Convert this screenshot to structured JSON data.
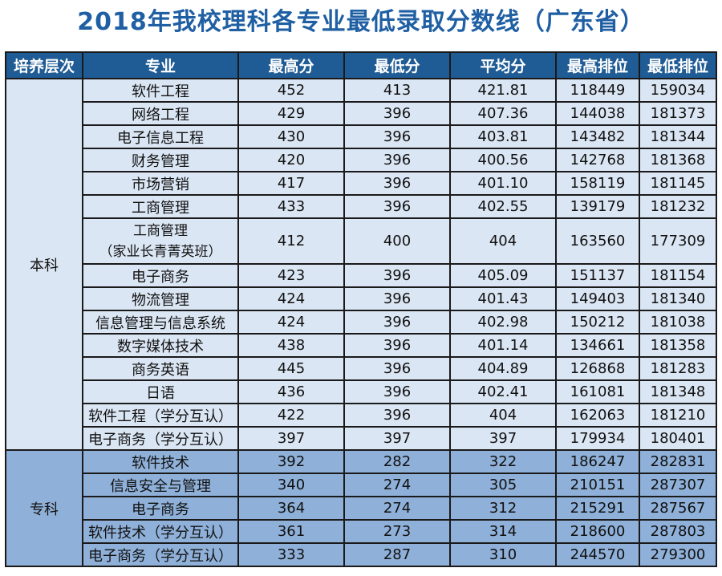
{
  "title": "2018年我校理科各专业最低录取分数线（广东省）",
  "headers": [
    "培养层次",
    "专业",
    "最高分",
    "最低分",
    "平均分",
    "最高排位",
    "最低排位"
  ],
  "colors": {
    "title": "#1f5fa3",
    "header_bg": "#1f5b94",
    "benke_bg": "#dbe6f4",
    "zhuanke_bg": "#8fb0d8"
  },
  "benke": {
    "level": "本科",
    "rows": [
      {
        "major": "软件工程",
        "max": "452",
        "min": "413",
        "avg": "421.81",
        "rank_high": "118449",
        "rank_low": "159034"
      },
      {
        "major": "网络工程",
        "max": "429",
        "min": "396",
        "avg": "407.36",
        "rank_high": "144038",
        "rank_low": "181373"
      },
      {
        "major": "电子信息工程",
        "max": "430",
        "min": "396",
        "avg": "403.81",
        "rank_high": "143482",
        "rank_low": "181344"
      },
      {
        "major": "财务管理",
        "max": "420",
        "min": "396",
        "avg": "400.56",
        "rank_high": "142768",
        "rank_low": "181368"
      },
      {
        "major": "市场营销",
        "max": "417",
        "min": "396",
        "avg": "401.10",
        "rank_high": "158119",
        "rank_low": "181145"
      },
      {
        "major": "工商管理",
        "max": "433",
        "min": "396",
        "avg": "402.55",
        "rank_high": "139179",
        "rank_low": "181232"
      },
      {
        "major": "工商管理",
        "major_sub": "（家业长青菁英班）",
        "max": "412",
        "min": "400",
        "avg": "404",
        "rank_high": "163560",
        "rank_low": "177309"
      },
      {
        "major": "电子商务",
        "max": "423",
        "min": "396",
        "avg": "405.09",
        "rank_high": "151137",
        "rank_low": "181154"
      },
      {
        "major": "物流管理",
        "max": "424",
        "min": "396",
        "avg": "401.43",
        "rank_high": "149403",
        "rank_low": "181340"
      },
      {
        "major": "信息管理与信息系统",
        "max": "424",
        "min": "396",
        "avg": "402.98",
        "rank_high": "150212",
        "rank_low": "181038"
      },
      {
        "major": "数字媒体技术",
        "max": "438",
        "min": "396",
        "avg": "401.14",
        "rank_high": "134661",
        "rank_low": "181358"
      },
      {
        "major": "商务英语",
        "max": "445",
        "min": "396",
        "avg": "404.89",
        "rank_high": "126868",
        "rank_low": "181283"
      },
      {
        "major": "日语",
        "max": "436",
        "min": "396",
        "avg": "402.41",
        "rank_high": "161081",
        "rank_low": "181348"
      },
      {
        "major": "软件工程（学分互认）",
        "max": "422",
        "min": "396",
        "avg": "404",
        "rank_high": "162063",
        "rank_low": "181210"
      },
      {
        "major": "电子商务（学分互认）",
        "max": "397",
        "min": "397",
        "avg": "397",
        "rank_high": "179934",
        "rank_low": "180401"
      }
    ]
  },
  "zhuanke": {
    "level": "专科",
    "rows": [
      {
        "major": "软件技术",
        "max": "392",
        "min": "282",
        "avg": "322",
        "rank_high": "186247",
        "rank_low": "282831"
      },
      {
        "major": "信息安全与管理",
        "max": "340",
        "min": "274",
        "avg": "305",
        "rank_high": "210151",
        "rank_low": "287307"
      },
      {
        "major": "电子商务",
        "max": "364",
        "min": "274",
        "avg": "312",
        "rank_high": "215291",
        "rank_low": "287567"
      },
      {
        "major": "软件技术（学分互认）",
        "max": "361",
        "min": "273",
        "avg": "314",
        "rank_high": "218600",
        "rank_low": "287803"
      },
      {
        "major": "电子商务（学分互认）",
        "max": "333",
        "min": "287",
        "avg": "310",
        "rank_high": "244570",
        "rank_low": "279300"
      }
    ]
  }
}
